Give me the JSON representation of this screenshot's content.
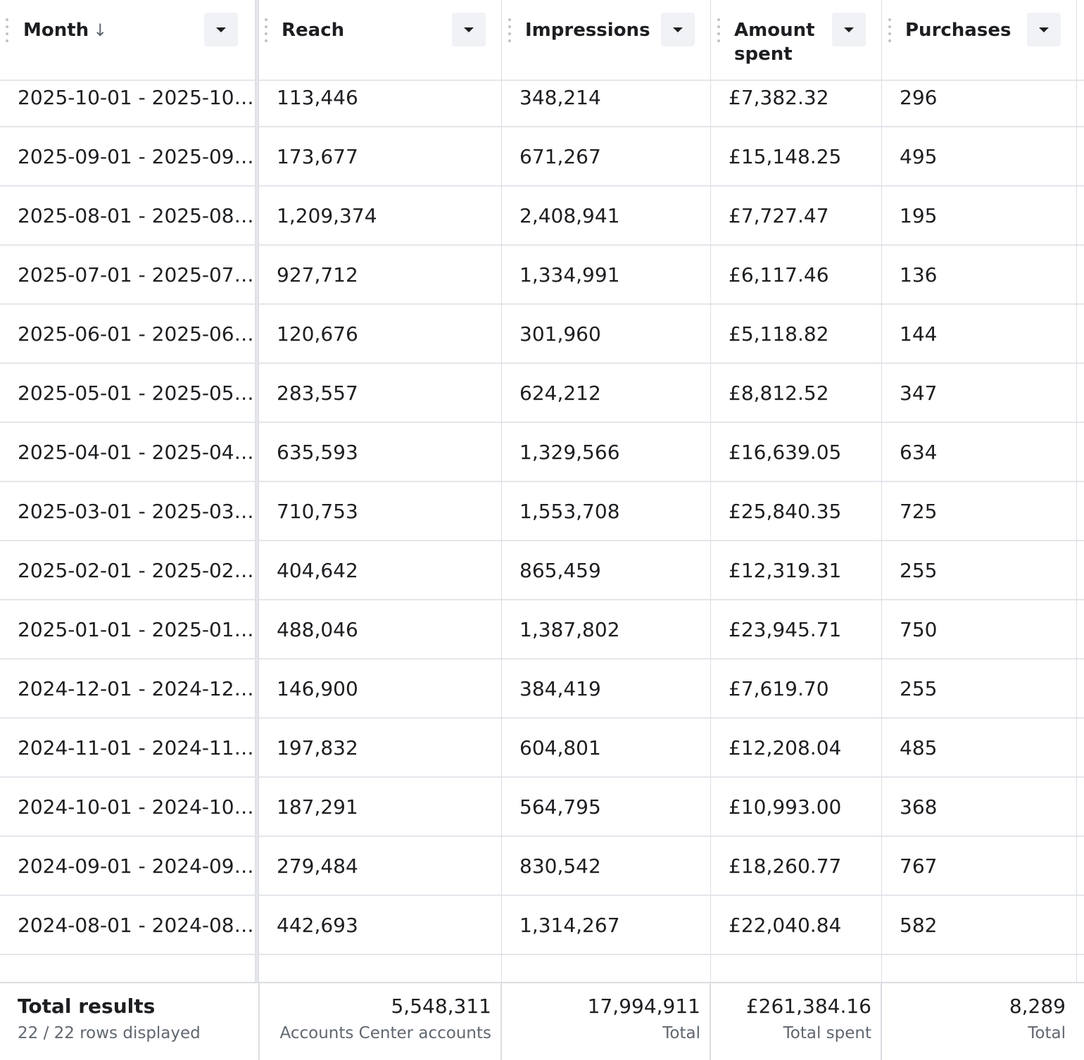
{
  "columns": {
    "month": "Month",
    "reach": "Reach",
    "impressions": "Impressions",
    "amount_spent_line1": "Amount",
    "amount_spent_line2": "spent",
    "purchases": "Purchases"
  },
  "sort_indicator": "↓",
  "rows": [
    {
      "month": "2025-10-01 - 2025-10…",
      "reach": "113,446",
      "impressions": "348,214",
      "amount_spent": "£7,382.32",
      "purchases": "296"
    },
    {
      "month": "2025-09-01 - 2025-09…",
      "reach": "173,677",
      "impressions": "671,267",
      "amount_spent": "£15,148.25",
      "purchases": "495"
    },
    {
      "month": "2025-08-01 - 2025-08…",
      "reach": "1,209,374",
      "impressions": "2,408,941",
      "amount_spent": "£7,727.47",
      "purchases": "195"
    },
    {
      "month": "2025-07-01 - 2025-07…",
      "reach": "927,712",
      "impressions": "1,334,991",
      "amount_spent": "£6,117.46",
      "purchases": "136"
    },
    {
      "month": "2025-06-01 - 2025-06…",
      "reach": "120,676",
      "impressions": "301,960",
      "amount_spent": "£5,118.82",
      "purchases": "144"
    },
    {
      "month": "2025-05-01 - 2025-05…",
      "reach": "283,557",
      "impressions": "624,212",
      "amount_spent": "£8,812.52",
      "purchases": "347"
    },
    {
      "month": "2025-04-01 - 2025-04…",
      "reach": "635,593",
      "impressions": "1,329,566",
      "amount_spent": "£16,639.05",
      "purchases": "634"
    },
    {
      "month": "2025-03-01 - 2025-03…",
      "reach": "710,753",
      "impressions": "1,553,708",
      "amount_spent": "£25,840.35",
      "purchases": "725"
    },
    {
      "month": "2025-02-01 - 2025-02…",
      "reach": "404,642",
      "impressions": "865,459",
      "amount_spent": "£12,319.31",
      "purchases": "255"
    },
    {
      "month": "2025-01-01 - 2025-01…",
      "reach": "488,046",
      "impressions": "1,387,802",
      "amount_spent": "£23,945.71",
      "purchases": "750"
    },
    {
      "month": "2024-12-01 - 2024-12…",
      "reach": "146,900",
      "impressions": "384,419",
      "amount_spent": "£7,619.70",
      "purchases": "255"
    },
    {
      "month": "2024-11-01 - 2024-11…",
      "reach": "197,832",
      "impressions": "604,801",
      "amount_spent": "£12,208.04",
      "purchases": "485"
    },
    {
      "month": "2024-10-01 - 2024-10…",
      "reach": "187,291",
      "impressions": "564,795",
      "amount_spent": "£10,993.00",
      "purchases": "368"
    },
    {
      "month": "2024-09-01 - 2024-09…",
      "reach": "279,484",
      "impressions": "830,542",
      "amount_spent": "£18,260.77",
      "purchases": "767"
    },
    {
      "month": "2024-08-01 - 2024-08…",
      "reach": "442,693",
      "impressions": "1,314,267",
      "amount_spent": "£22,040.84",
      "purchases": "582"
    }
  ],
  "footer": {
    "title": "Total results",
    "rows_displayed": "22 / 22 rows displayed",
    "reach_total": "5,548,311",
    "reach_sub": "Accounts Center accounts",
    "impressions_total": "17,994,911",
    "impressions_sub": "Total",
    "amount_total": "£261,384.16",
    "amount_sub": "Total spent",
    "purchases_total": "8,289",
    "purchases_sub": "Total"
  }
}
